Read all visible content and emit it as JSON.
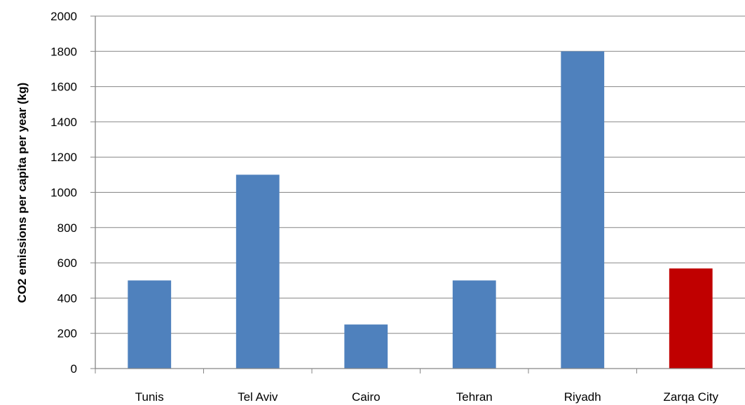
{
  "chart_data": {
    "type": "bar",
    "title": "",
    "xlabel": "",
    "ylabel": "CO2 emissions per capita per year (kg)",
    "categories": [
      "Tunis",
      "Tel Aviv",
      "Cairo",
      "Tehran",
      "Riyadh",
      "Zarqa City"
    ],
    "values": [
      500,
      1100,
      250,
      500,
      1800,
      568
    ],
    "bar_colors": [
      "#4f81bd",
      "#4f81bd",
      "#4f81bd",
      "#4f81bd",
      "#4f81bd",
      "#c00000"
    ],
    "ylim": [
      0,
      2000
    ],
    "yticks": [
      0,
      200,
      400,
      600,
      800,
      1000,
      1200,
      1400,
      1600,
      1800,
      2000
    ],
    "grid": true,
    "legend": "none"
  }
}
